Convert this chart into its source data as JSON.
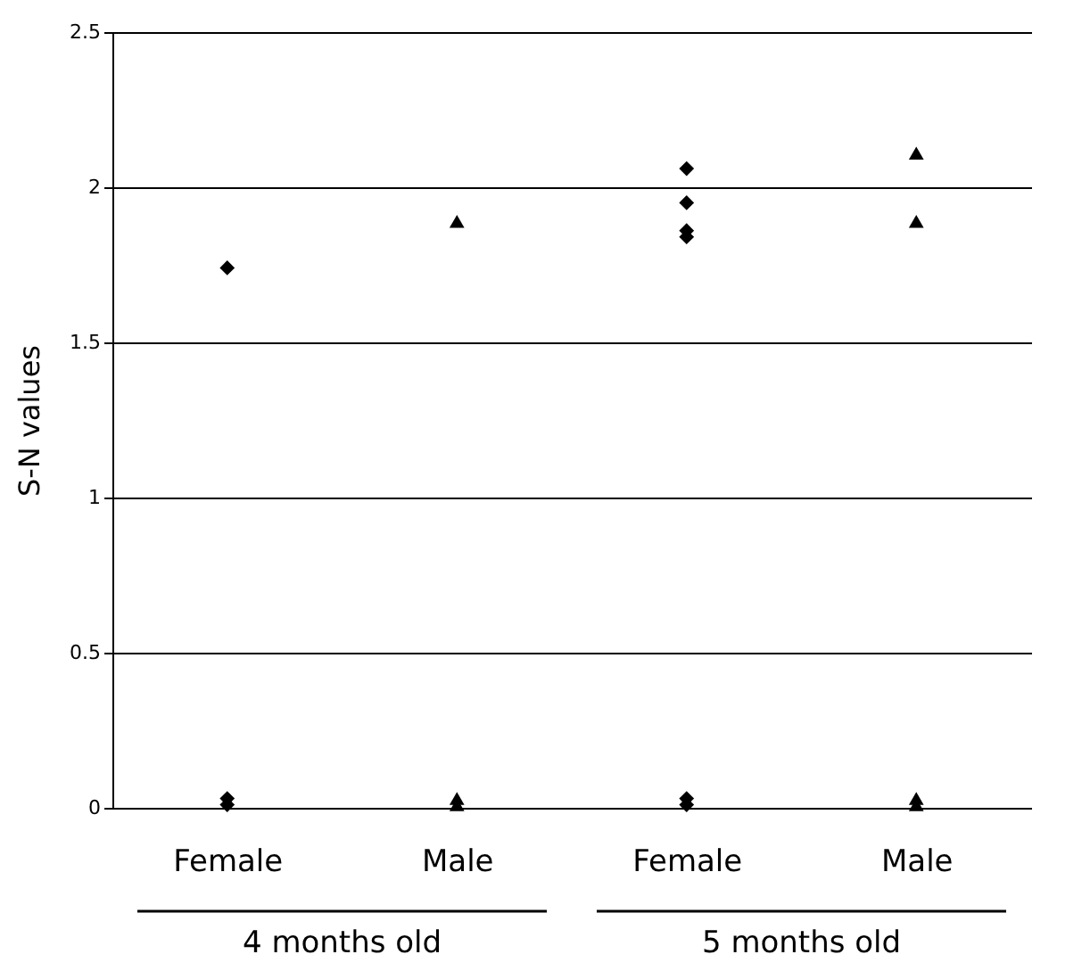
{
  "chart_data": {
    "type": "scatter",
    "categories": [
      "Female",
      "Male",
      "Female",
      "Male"
    ],
    "ylabel": "S-N values",
    "ylim": [
      0,
      2.5
    ],
    "yticks": [
      0,
      0.5,
      1,
      1.5,
      2,
      2.5
    ],
    "grid": "y",
    "annotations": [
      "4 months old",
      "5 months old"
    ],
    "series": [
      {
        "color": "#000000",
        "marker": "diamond",
        "values": [
          1.74,
          null,
          2.06,
          null
        ]
      },
      {
        "color": "#000000",
        "marker": "diamond",
        "values": [
          0.03,
          null,
          1.95,
          null
        ]
      },
      {
        "color": "#000000",
        "marker": "diamond",
        "values": [
          0.01,
          null,
          1.86,
          null
        ]
      },
      {
        "color": "#000000",
        "marker": "diamond",
        "values": [
          null,
          null,
          1.84,
          null
        ]
      },
      {
        "color": "#000000",
        "marker": "diamond",
        "values": [
          null,
          null,
          0.03,
          null
        ]
      },
      {
        "color": "#000000",
        "marker": "diamond",
        "values": [
          null,
          null,
          0.01,
          null
        ]
      },
      {
        "color": "#000000",
        "marker": "triangle",
        "values": [
          null,
          1.89,
          null,
          2.11
        ]
      },
      {
        "color": "#000000",
        "marker": "triangle",
        "values": [
          null,
          0.03,
          null,
          1.89
        ]
      },
      {
        "color": "#000000",
        "marker": "triangle",
        "values": [
          null,
          0.01,
          null,
          0.03
        ]
      },
      {
        "color": "#000000",
        "marker": "triangle",
        "values": [
          null,
          null,
          null,
          0.01
        ]
      }
    ]
  }
}
